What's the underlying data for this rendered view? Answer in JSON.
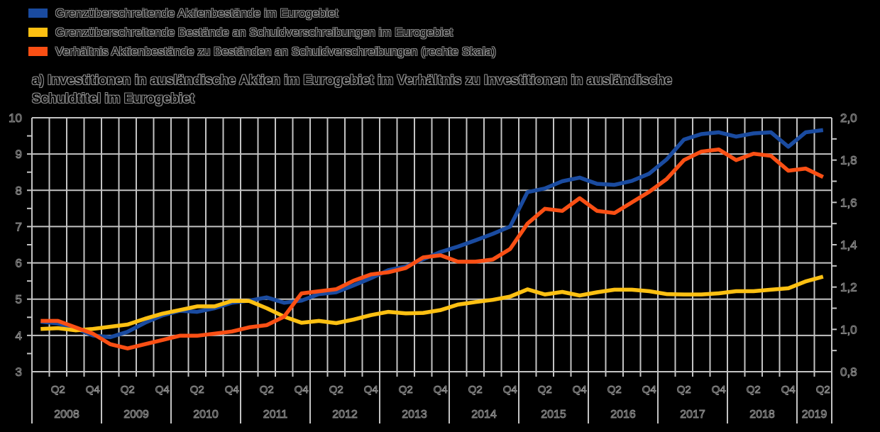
{
  "legend": {
    "items": [
      {
        "label": "Grenzüberschreitende Aktienbestände im Eurogebiet",
        "color": "#1a4ba0"
      },
      {
        "label": "Grenzüberschreitende Bestände an Schuldverschreibungen im Eurogebiet",
        "color": "#fdc012"
      },
      {
        "label": "Verhältnis Aktienbestände zu Beständen an Schuldverschreibungen (rechte Skala)",
        "color": "#fa4f14"
      }
    ]
  },
  "title": {
    "line1": "a) Investitionen in ausländische Aktien im Eurogebiet im Verhältnis zu Investitionen in ausländische",
    "line2": "Schuldtitel im Eurogebiet"
  },
  "chart_data": {
    "type": "line",
    "x": [
      "2008Q1",
      "2008Q2",
      "2008Q3",
      "2008Q4",
      "2009Q1",
      "2009Q2",
      "2009Q3",
      "2009Q4",
      "2010Q1",
      "2010Q2",
      "2010Q3",
      "2010Q4",
      "2011Q1",
      "2011Q2",
      "2011Q3",
      "2011Q4",
      "2012Q1",
      "2012Q2",
      "2012Q3",
      "2012Q4",
      "2013Q1",
      "2013Q2",
      "2013Q3",
      "2013Q4",
      "2014Q1",
      "2014Q2",
      "2014Q3",
      "2014Q4",
      "2015Q1",
      "2015Q2",
      "2015Q3",
      "2015Q4",
      "2016Q1",
      "2016Q2",
      "2016Q3",
      "2016Q4",
      "2017Q1",
      "2017Q2",
      "2017Q3",
      "2017Q4",
      "2018Q1",
      "2018Q2",
      "2018Q3",
      "2018Q4",
      "2019Q1",
      "2019Q2"
    ],
    "series": [
      {
        "name": "Grenzüberschreitende Aktienbestände im Eurogebiet",
        "axis": "left",
        "color": "#1a4ba0",
        "values": [
          4.38,
          4.33,
          4.2,
          4.0,
          3.95,
          4.1,
          4.35,
          4.55,
          4.68,
          4.65,
          4.75,
          4.9,
          4.96,
          5.05,
          4.9,
          4.96,
          5.14,
          5.19,
          5.38,
          5.58,
          5.8,
          5.9,
          6.1,
          6.3,
          6.45,
          6.62,
          6.8,
          7.0,
          7.95,
          8.05,
          8.25,
          8.35,
          8.18,
          8.15,
          8.26,
          8.46,
          8.85,
          9.4,
          9.55,
          9.6,
          9.48,
          9.57,
          9.6,
          9.2,
          9.6,
          9.66
        ]
      },
      {
        "name": "Grenzüberschreitende Bestände an Schuldverschreibungen im Eurogebiet",
        "axis": "left",
        "color": "#fdc012",
        "values": [
          4.18,
          4.2,
          4.14,
          4.18,
          4.24,
          4.3,
          4.46,
          4.6,
          4.7,
          4.8,
          4.8,
          4.95,
          4.95,
          4.75,
          4.52,
          4.35,
          4.4,
          4.34,
          4.44,
          4.56,
          4.65,
          4.61,
          4.62,
          4.7,
          4.85,
          4.92,
          4.98,
          5.07,
          5.27,
          5.13,
          5.2,
          5.1,
          5.19,
          5.26,
          5.26,
          5.22,
          5.14,
          5.13,
          5.13,
          5.16,
          5.22,
          5.22,
          5.26,
          5.3,
          5.49,
          5.62
        ]
      },
      {
        "name": "Verhältnis Aktienbestände zu Beständen an Schuldverschreibungen (rechte Skala)",
        "axis": "right",
        "color": "#fa4f14",
        "values": [
          1.04,
          1.04,
          1.01,
          0.98,
          0.93,
          0.91,
          0.93,
          0.95,
          0.97,
          0.97,
          0.98,
          0.99,
          1.01,
          1.02,
          1.06,
          1.17,
          1.18,
          1.19,
          1.23,
          1.26,
          1.27,
          1.29,
          1.34,
          1.35,
          1.32,
          1.32,
          1.33,
          1.38,
          1.5,
          1.57,
          1.56,
          1.62,
          1.56,
          1.55,
          1.6,
          1.65,
          1.71,
          1.8,
          1.84,
          1.85,
          1.8,
          1.83,
          1.82,
          1.75,
          1.76,
          1.72
        ]
      }
    ],
    "left_axis": {
      "min": 3,
      "max": 10,
      "tick_step": 1,
      "minor_step": 0.5,
      "tick_labels": [
        "10",
        "9",
        "8",
        "7",
        "6",
        "5",
        "4",
        "3"
      ]
    },
    "right_axis": {
      "min": 0.8,
      "max": 2.0,
      "tick_step": 0.2,
      "minor_step": 0.1,
      "tick_labels": [
        "2,0",
        "1,8",
        "1,6",
        "1,4",
        "1,2",
        "1,0",
        "0,8"
      ]
    },
    "x_axis": {
      "years": [
        {
          "label": "2008",
          "quarters": 4
        },
        {
          "label": "2009",
          "quarters": 4
        },
        {
          "label": "2010",
          "quarters": 4
        },
        {
          "label": "2011",
          "quarters": 4
        },
        {
          "label": "2012",
          "quarters": 4
        },
        {
          "label": "2013",
          "quarters": 4
        },
        {
          "label": "2014",
          "quarters": 4
        },
        {
          "label": "2015",
          "quarters": 4
        },
        {
          "label": "2016",
          "quarters": 4
        },
        {
          "label": "2017",
          "quarters": 4
        },
        {
          "label": "2018",
          "quarters": 4
        },
        {
          "label": "2019",
          "quarters": 2
        }
      ],
      "quarter_slot_labels": [
        {
          "text": "Q2",
          "slot": 1
        },
        {
          "text": "Q4",
          "slot": 3
        }
      ]
    },
    "grid": "on",
    "legend_position": "top-left",
    "style": {
      "background": "#000000",
      "grid_color": "#c3c3c3",
      "text_outline": "#8c8c8c"
    }
  }
}
